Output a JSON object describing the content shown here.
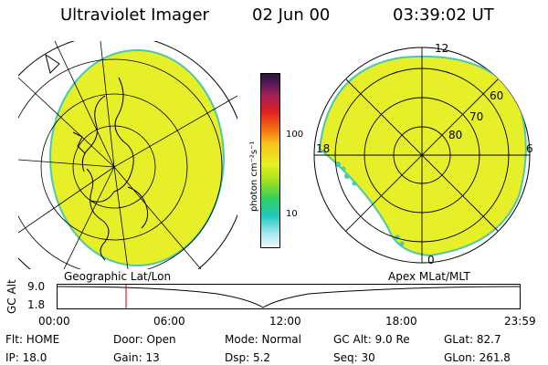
{
  "header": {
    "instrument": "Ultraviolet Imager",
    "date": "02 Jun 00",
    "time": "03:39:02 UT"
  },
  "colorbar": {
    "unit_label": "photon cm⁻²s⁻¹",
    "ticks": [
      "100",
      "10"
    ]
  },
  "apex_plot": {
    "lat_labels": [
      "60",
      "70",
      "80"
    ],
    "mlt_labels": [
      "12",
      "18",
      "6",
      "0"
    ]
  },
  "panel_labels": {
    "left": "Geographic Lat/Lon",
    "right": "Apex MLat/MLT"
  },
  "timeline": {
    "axis_title": "GC Alt",
    "y_ticks": [
      "9.0",
      "1.8"
    ],
    "x_ticks": [
      "00:00",
      "06:00",
      "12:00",
      "18:00",
      "23:59"
    ],
    "marker_color": "#cc0000"
  },
  "info": {
    "flt": "Flt:  HOME",
    "ip": "IP:  18.0",
    "door": "Door:  Open",
    "gain": "Gain:  13",
    "mode": "Mode:  Normal",
    "dsp": "Dsp:      5.2",
    "gc_alt": "GC Alt:  9.0 Re",
    "seq": "Seq:  30",
    "glat": "GLat:   82.7",
    "glon": "GLon:  261.8"
  },
  "colors": {
    "image_fill": "#e6ef28",
    "image_edge": "#4cc8b0"
  }
}
